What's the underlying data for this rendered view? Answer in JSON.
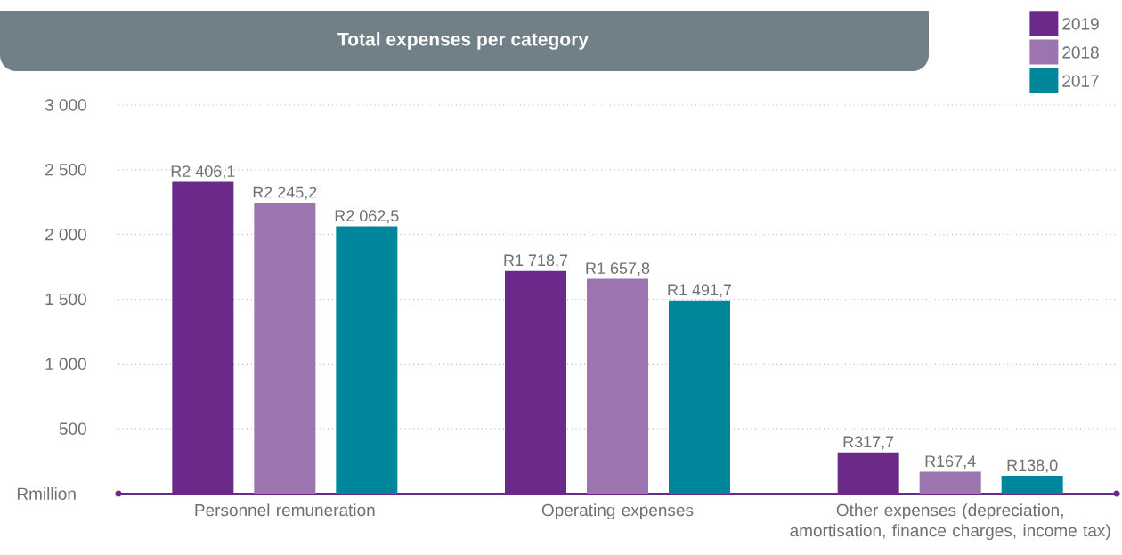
{
  "chart_data": {
    "type": "bar",
    "title": "Total expenses per category",
    "ylabel": "Rmillion",
    "categories": [
      "Personnel remuneration",
      "Operating expenses",
      "Other expenses (depreciation, amortisation, finance charges, income tax)"
    ],
    "series": [
      {
        "name": "2019",
        "color": "#6b2a8a",
        "values": [
          2406.1,
          1718.7,
          317.7
        ],
        "value_labels": [
          "R2 406,1",
          "R1 718,7",
          "R317,7"
        ]
      },
      {
        "name": "2018",
        "color": "#9b74b0",
        "values": [
          2245.2,
          1657.8,
          167.4
        ],
        "value_labels": [
          "R2 245,2",
          "R1 657,8",
          "R167,4"
        ]
      },
      {
        "name": "2017",
        "color": "#00869a",
        "values": [
          2062.5,
          1491.7,
          138.0
        ],
        "value_labels": [
          "R2 062,5",
          "R1 491,7",
          "R138,0"
        ]
      }
    ],
    "ylim": [
      0,
      3000
    ],
    "yticks": [
      {
        "value": 500,
        "label": "500"
      },
      {
        "value": 1000,
        "label": "1 000"
      },
      {
        "value": 1500,
        "label": "1 500"
      },
      {
        "value": 2000,
        "label": "2 000"
      },
      {
        "value": 2500,
        "label": "2 500"
      },
      {
        "value": 3000,
        "label": "3 000"
      }
    ],
    "grid": "y",
    "legend": "top right"
  }
}
